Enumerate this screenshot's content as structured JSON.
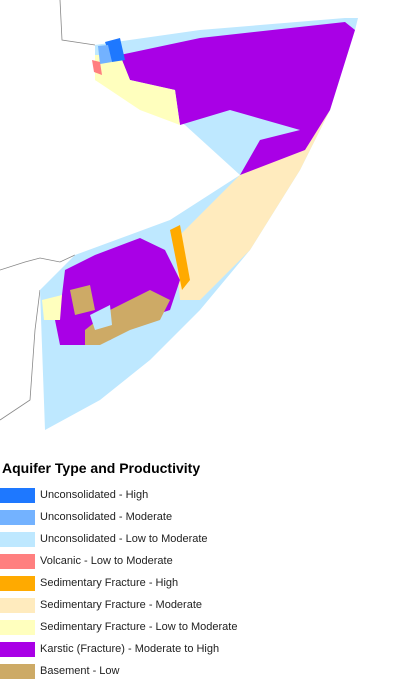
{
  "legend": {
    "title": "Aquifer Type and Productivity",
    "items": [
      {
        "label": "Unconsolidated - High",
        "color": "#1e78ff"
      },
      {
        "label": "Unconsolidated - Moderate",
        "color": "#73b2ff"
      },
      {
        "label": "Unconsolidated - Low to Moderate",
        "color": "#bee8ff"
      },
      {
        "label": "Volcanic - Low to Moderate",
        "color": "#ff7f7f"
      },
      {
        "label": "Sedimentary Fracture - High",
        "color": "#ffaa00"
      },
      {
        "label": "Sedimentary Fracture - Moderate",
        "color": "#ffebbe"
      },
      {
        "label": "Sedimentary Fracture - Low to Moderate",
        "color": "#ffffbe"
      },
      {
        "label": "Karstic (Fracture) - Moderate to High",
        "color": "#a900e6"
      },
      {
        "label": "Basement - Low",
        "color": "#cdaa66"
      }
    ]
  }
}
